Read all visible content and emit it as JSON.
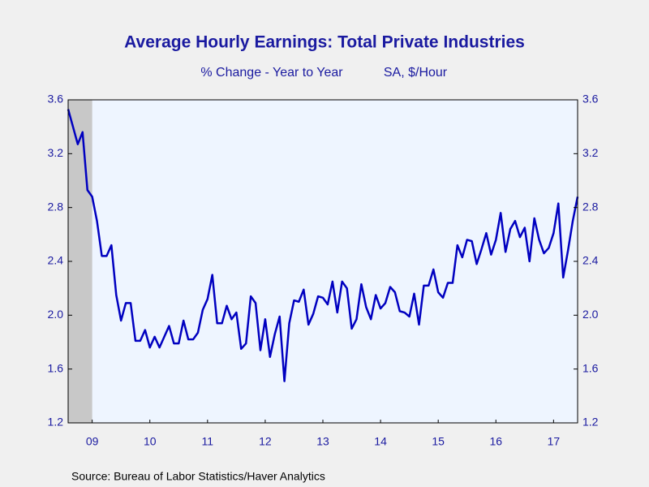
{
  "chart_data": {
    "type": "line",
    "title": "Average Hourly Earnings: Total Private Industries",
    "subtitle": "% Change - Year to Year",
    "units": "SA, $/Hour",
    "source": "Source:  Bureau of Labor Statistics/Haver Analytics",
    "x": [
      2009.083,
      2009.167,
      2009.25,
      2009.333,
      2009.417,
      2009.5,
      2009.583,
      2009.667,
      2009.75,
      2009.833,
      2009.917,
      2010,
      2010.083,
      2010.167,
      2010.25,
      2010.333,
      2010.417,
      2010.5,
      2010.583,
      2010.667,
      2010.75,
      2010.833,
      2010.917,
      2011,
      2011.083,
      2011.167,
      2011.25,
      2011.333,
      2011.417,
      2011.5,
      2011.583,
      2011.667,
      2011.75,
      2011.833,
      2011.917,
      2012,
      2012.083,
      2012.167,
      2012.25,
      2012.333,
      2012.417,
      2012.5,
      2012.583,
      2012.667,
      2012.75,
      2012.833,
      2012.917,
      2013,
      2013.083,
      2013.167,
      2013.25,
      2013.333,
      2013.417,
      2013.5,
      2013.583,
      2013.667,
      2013.75,
      2013.833,
      2013.917,
      2014,
      2014.083,
      2014.167,
      2014.25,
      2014.333,
      2014.417,
      2014.5,
      2014.583,
      2014.667,
      2014.75,
      2014.833,
      2014.917,
      2015,
      2015.083,
      2015.167,
      2015.25,
      2015.333,
      2015.417,
      2015.5,
      2015.583,
      2015.667,
      2015.75,
      2015.833,
      2015.917,
      2016,
      2016.083,
      2016.167,
      2016.25,
      2016.333,
      2016.417,
      2016.5,
      2016.583,
      2016.667,
      2016.75,
      2016.833,
      2016.917,
      2017,
      2017.083,
      2017.167,
      2017.25,
      2017.333,
      2017.417,
      2017.5,
      2017.583,
      2017.667,
      2017.75,
      2017.833,
      2017.917
    ],
    "series": [
      {
        "name": "Average Hourly Earnings",
        "color": "#0000c0",
        "values": [
          3.53,
          3.4,
          3.27,
          3.36,
          2.93,
          2.88,
          2.7,
          2.44,
          2.44,
          2.52,
          2.15,
          1.96,
          2.09,
          2.09,
          1.81,
          1.81,
          1.89,
          1.76,
          1.84,
          1.76,
          1.84,
          1.92,
          1.79,
          1.79,
          1.96,
          1.82,
          1.82,
          1.87,
          2.04,
          2.12,
          2.3,
          1.94,
          1.94,
          2.07,
          1.97,
          2.02,
          1.75,
          1.79,
          2.14,
          2.09,
          1.74,
          1.97,
          1.69,
          1.86,
          1.99,
          1.51,
          1.94,
          2.11,
          2.1,
          2.19,
          1.93,
          2.01,
          2.14,
          2.13,
          2.08,
          2.25,
          2.02,
          2.25,
          2.2,
          1.9,
          1.97,
          2.23,
          2.06,
          1.97,
          2.15,
          2.05,
          2.09,
          2.21,
          2.17,
          2.03,
          2.02,
          1.99,
          2.16,
          1.93,
          2.22,
          2.22,
          2.34,
          2.17,
          2.13,
          2.24,
          2.24,
          2.52,
          2.43,
          2.56,
          2.55,
          2.38,
          2.49,
          2.61,
          2.45,
          2.56,
          2.76,
          2.47,
          2.64,
          2.7,
          2.58,
          2.65,
          2.4,
          2.72,
          2.56,
          2.46,
          2.5,
          2.61,
          2.83,
          2.28,
          2.48,
          2.7,
          2.88
        ]
      }
    ],
    "xlim": [
      2009.083,
      2017.917
    ],
    "xticks": [
      {
        "value": 2009.5,
        "label": "09"
      },
      {
        "value": 2010.5,
        "label": "10"
      },
      {
        "value": 2011.5,
        "label": "11"
      },
      {
        "value": 2012.5,
        "label": "12"
      },
      {
        "value": 2013.5,
        "label": "13"
      },
      {
        "value": 2014.5,
        "label": "14"
      },
      {
        "value": 2015.5,
        "label": "15"
      },
      {
        "value": 2016.5,
        "label": "16"
      },
      {
        "value": 2017.5,
        "label": "17"
      }
    ],
    "ylim": [
      1.2,
      3.6
    ],
    "yticks": [
      {
        "value": 1.2,
        "label": "1.2"
      },
      {
        "value": 1.6,
        "label": "1.6"
      },
      {
        "value": 2,
        "label": "2.0"
      },
      {
        "value": 2.4,
        "label": "2.4"
      },
      {
        "value": 2.8,
        "label": "2.8"
      },
      {
        "value": 3.2,
        "label": "3.2"
      },
      {
        "value": 3.6,
        "label": "3.6"
      }
    ],
    "recession": [
      2009.083,
      2009.5
    ],
    "recession_color": "#c8c8c8",
    "grid": false
  }
}
